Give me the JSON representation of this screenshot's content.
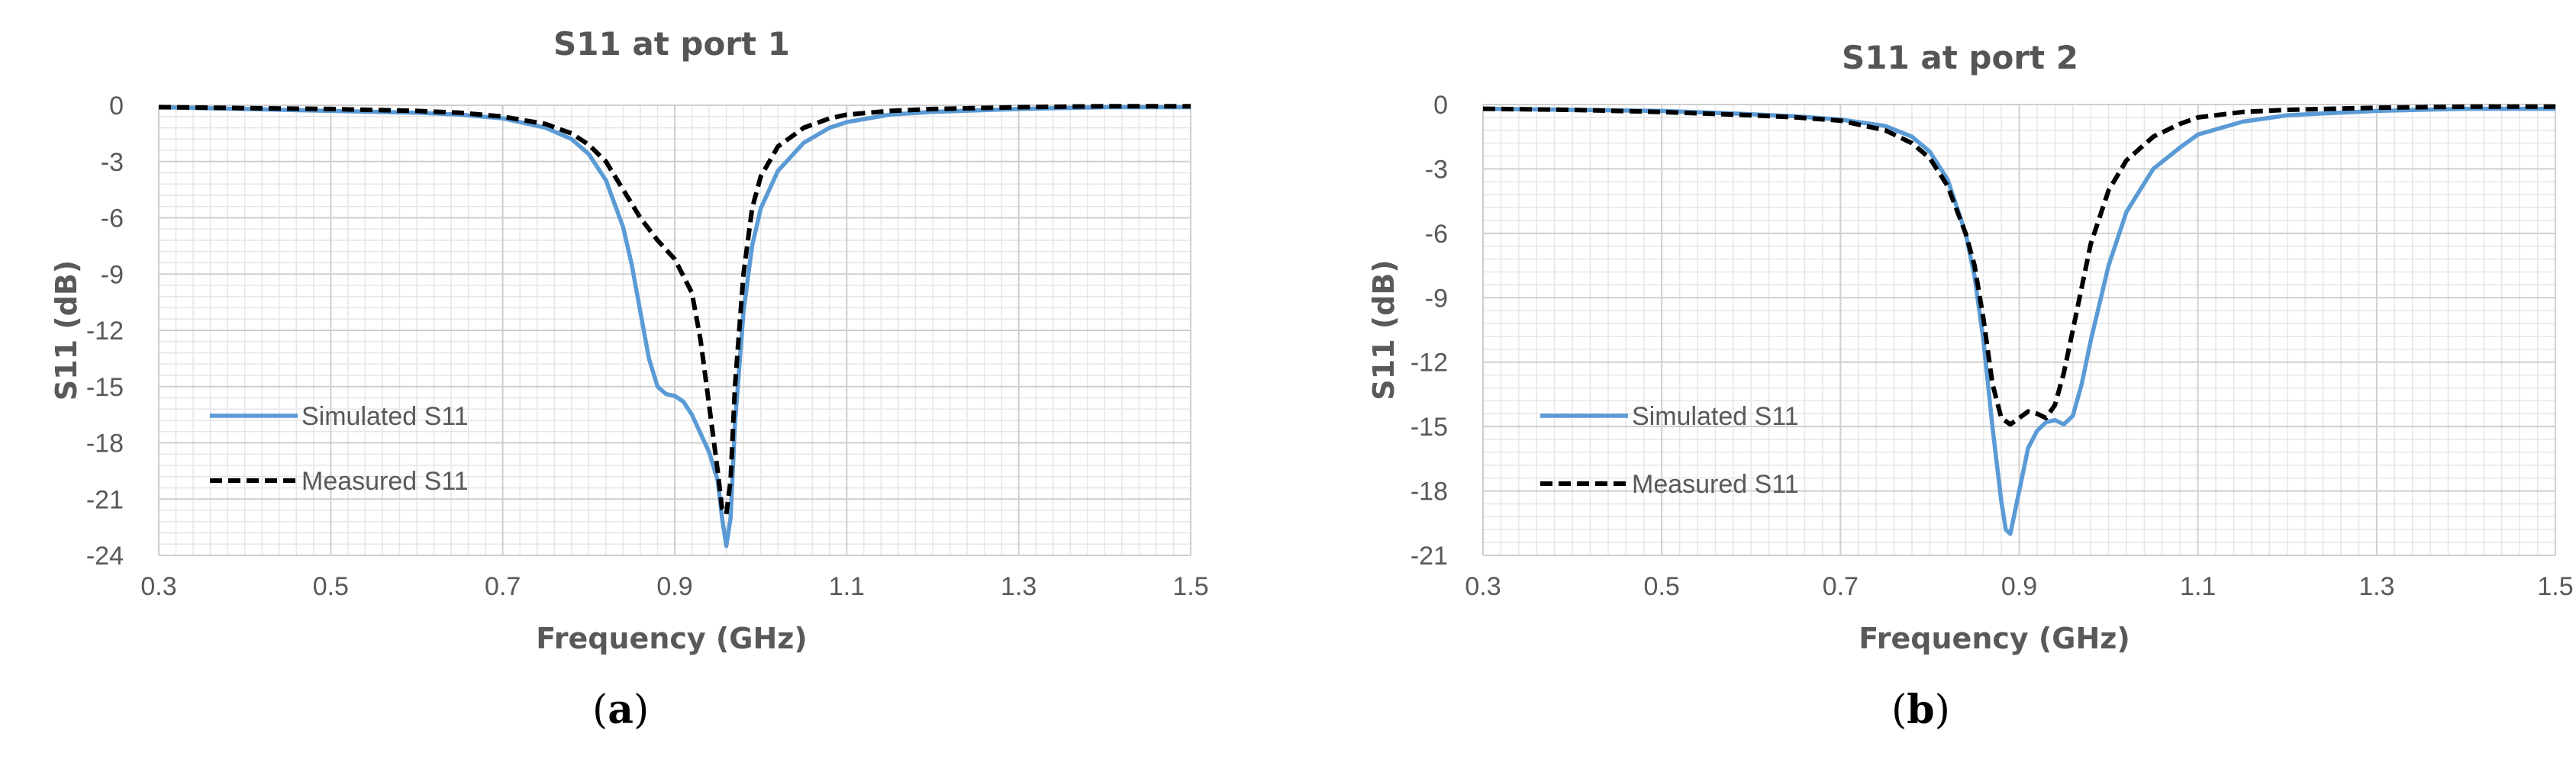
{
  "chart_data": [
    {
      "type": "line",
      "title": "S11 at port 1",
      "xlabel": "Frequency (GHz)",
      "ylabel": "S11 (dB)",
      "xlim": [
        0.3,
        1.5
      ],
      "ylim": [
        -24,
        0
      ],
      "x_ticks": [
        "0.3",
        "0.5",
        "0.7",
        "0.9",
        "1.1",
        "1.3",
        "1.5"
      ],
      "y_ticks": [
        "0",
        "-3",
        "-6",
        "-9",
        "-12",
        "-15",
        "-18",
        "-21",
        "-24"
      ],
      "grid": true,
      "legend_position": "bottom-left",
      "caption": "a",
      "series": [
        {
          "name": "Simulated S11",
          "color": "#5B9BD5",
          "dash": "solid",
          "x": [
            0.3,
            0.4,
            0.5,
            0.6,
            0.65,
            0.7,
            0.75,
            0.78,
            0.8,
            0.82,
            0.84,
            0.85,
            0.86,
            0.87,
            0.88,
            0.89,
            0.9,
            0.91,
            0.92,
            0.93,
            0.94,
            0.95,
            0.955,
            0.96,
            0.965,
            0.97,
            0.98,
            0.99,
            1.0,
            1.02,
            1.05,
            1.08,
            1.1,
            1.15,
            1.2,
            1.3,
            1.4,
            1.5
          ],
          "y": [
            -0.1,
            -0.2,
            -0.3,
            -0.4,
            -0.5,
            -0.7,
            -1.2,
            -1.8,
            -2.6,
            -4.0,
            -6.5,
            -8.5,
            -11.0,
            -13.5,
            -15.0,
            -15.4,
            -15.5,
            -15.8,
            -16.5,
            -17.5,
            -18.5,
            -20.0,
            -22.0,
            -23.5,
            -22.0,
            -17.0,
            -11.0,
            -7.5,
            -5.5,
            -3.5,
            -2.0,
            -1.2,
            -0.9,
            -0.5,
            -0.35,
            -0.2,
            -0.1,
            -0.1
          ]
        },
        {
          "name": "Measured S11",
          "color": "#000000",
          "dash": "dashed",
          "x": [
            0.3,
            0.4,
            0.5,
            0.6,
            0.65,
            0.7,
            0.75,
            0.78,
            0.8,
            0.82,
            0.84,
            0.86,
            0.88,
            0.9,
            0.92,
            0.93,
            0.94,
            0.95,
            0.955,
            0.96,
            0.965,
            0.97,
            0.98,
            0.99,
            1.0,
            1.02,
            1.05,
            1.08,
            1.1,
            1.15,
            1.2,
            1.3,
            1.4,
            1.5
          ],
          "y": [
            -0.1,
            -0.15,
            -0.2,
            -0.3,
            -0.4,
            -0.6,
            -1.0,
            -1.5,
            -2.1,
            -3.0,
            -4.5,
            -6.0,
            -7.2,
            -8.2,
            -10.0,
            -12.5,
            -16.0,
            -19.5,
            -21.5,
            -21.8,
            -20.0,
            -15.0,
            -9.0,
            -5.5,
            -3.8,
            -2.2,
            -1.2,
            -0.7,
            -0.5,
            -0.3,
            -0.2,
            -0.1,
            -0.05,
            -0.05
          ]
        }
      ]
    },
    {
      "type": "line",
      "title": "S11 at port 2",
      "xlabel": "Frequency (GHz)",
      "ylabel": "S11 (dB)",
      "xlim": [
        0.3,
        1.5
      ],
      "ylim": [
        -21,
        0
      ],
      "x_ticks": [
        "0.3",
        "0.5",
        "0.7",
        "0.9",
        "1.1",
        "1.3",
        "1.5"
      ],
      "y_ticks": [
        "0",
        "-3",
        "-6",
        "-9",
        "-12",
        "-15",
        "-18",
        "-21"
      ],
      "grid": true,
      "legend_position": "bottom-left",
      "caption": "b",
      "series": [
        {
          "name": "Simulated S11",
          "color": "#5B9BD5",
          "dash": "solid",
          "x": [
            0.3,
            0.4,
            0.5,
            0.6,
            0.65,
            0.7,
            0.75,
            0.78,
            0.8,
            0.82,
            0.84,
            0.85,
            0.86,
            0.87,
            0.88,
            0.885,
            0.89,
            0.9,
            0.91,
            0.92,
            0.93,
            0.94,
            0.95,
            0.96,
            0.97,
            0.98,
            1.0,
            1.02,
            1.05,
            1.08,
            1.1,
            1.15,
            1.2,
            1.3,
            1.4,
            1.5
          ],
          "y": [
            -0.2,
            -0.25,
            -0.3,
            -0.45,
            -0.55,
            -0.7,
            -1.0,
            -1.5,
            -2.2,
            -3.5,
            -6.0,
            -8.0,
            -11.0,
            -15.0,
            -18.5,
            -19.8,
            -20.0,
            -18.0,
            -16.0,
            -15.2,
            -14.8,
            -14.7,
            -14.9,
            -14.5,
            -13.0,
            -11.0,
            -7.5,
            -5.0,
            -3.0,
            -2.0,
            -1.4,
            -0.8,
            -0.5,
            -0.3,
            -0.2,
            -0.2
          ]
        },
        {
          "name": "Measured S11",
          "color": "#000000",
          "dash": "dashed",
          "x": [
            0.3,
            0.4,
            0.5,
            0.6,
            0.65,
            0.7,
            0.75,
            0.78,
            0.8,
            0.82,
            0.84,
            0.85,
            0.86,
            0.87,
            0.88,
            0.89,
            0.9,
            0.91,
            0.92,
            0.93,
            0.94,
            0.95,
            0.96,
            0.97,
            0.98,
            1.0,
            1.02,
            1.05,
            1.08,
            1.1,
            1.15,
            1.2,
            1.3,
            1.4,
            1.5
          ],
          "y": [
            -0.2,
            -0.25,
            -0.35,
            -0.5,
            -0.6,
            -0.75,
            -1.2,
            -1.8,
            -2.5,
            -3.8,
            -6.0,
            -7.5,
            -10.0,
            -13.0,
            -14.6,
            -14.9,
            -14.6,
            -14.3,
            -14.4,
            -14.6,
            -14.0,
            -12.5,
            -10.5,
            -8.5,
            -6.5,
            -4.0,
            -2.6,
            -1.5,
            -0.9,
            -0.6,
            -0.35,
            -0.25,
            -0.15,
            -0.1,
            -0.1
          ]
        }
      ]
    }
  ]
}
